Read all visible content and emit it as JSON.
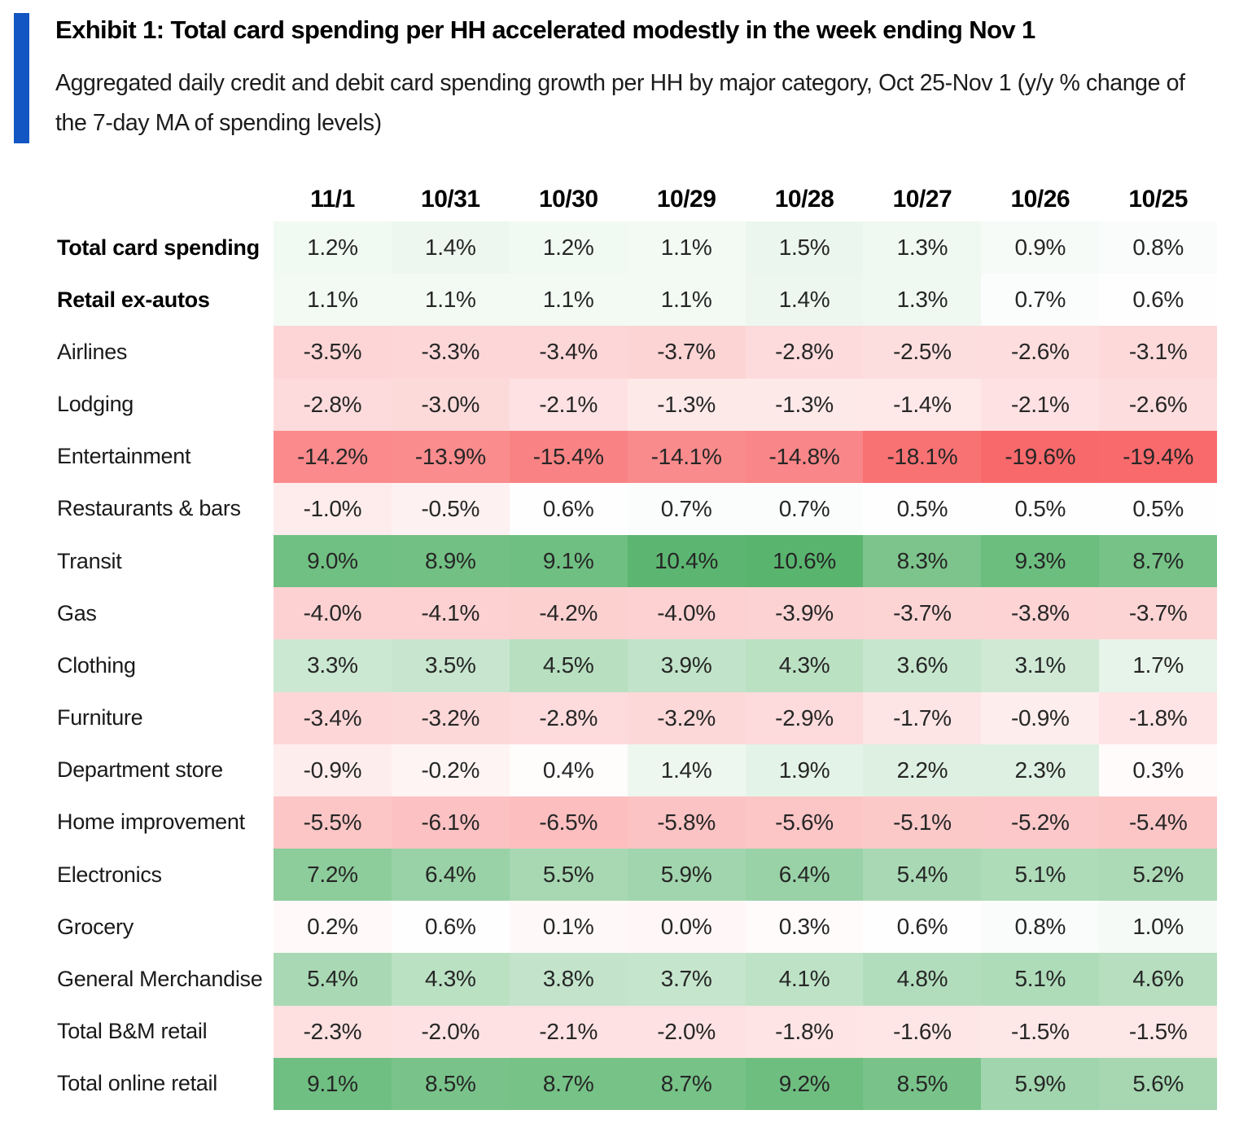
{
  "exhibit": {
    "title": "Exhibit 1: Total card spending per HH accelerated modestly in the week ending Nov 1",
    "subtitle": "Aggregated daily credit and debit card spending growth per HH by major category, Oct 25-Nov 1 (y/y % change of the 7-day MA of spending levels)",
    "accent_color": "#1156C2"
  },
  "chart_data": {
    "type": "heatmap",
    "title": "Exhibit 1: Total card spending per HH accelerated modestly in the week ending Nov 1",
    "unit": "y/y % change of 7-day MA of spending levels",
    "value_suffix": "%",
    "columns": [
      "11/1",
      "10/31",
      "10/30",
      "10/29",
      "10/28",
      "10/27",
      "10/26",
      "10/25"
    ],
    "rows": [
      {
        "label": "Total card spending",
        "bold": true,
        "values": [
          1.2,
          1.4,
          1.2,
          1.1,
          1.5,
          1.3,
          0.9,
          0.8
        ]
      },
      {
        "label": "Retail ex-autos",
        "bold": true,
        "values": [
          1.1,
          1.1,
          1.1,
          1.1,
          1.4,
          1.3,
          0.7,
          0.6
        ]
      },
      {
        "label": "Airlines",
        "bold": false,
        "values": [
          -3.5,
          -3.3,
          -3.4,
          -3.7,
          -2.8,
          -2.5,
          -2.6,
          -3.1
        ]
      },
      {
        "label": "Lodging",
        "bold": false,
        "values": [
          -2.8,
          -3.0,
          -2.1,
          -1.3,
          -1.3,
          -1.4,
          -2.1,
          -2.6
        ]
      },
      {
        "label": "Entertainment",
        "bold": false,
        "values": [
          -14.2,
          -13.9,
          -15.4,
          -14.1,
          -14.8,
          -18.1,
          -19.6,
          -19.4
        ]
      },
      {
        "label": "Restaurants & bars",
        "bold": false,
        "values": [
          -1.0,
          -0.5,
          0.6,
          0.7,
          0.7,
          0.5,
          0.5,
          0.5
        ]
      },
      {
        "label": "Transit",
        "bold": false,
        "values": [
          9.0,
          8.9,
          9.1,
          10.4,
          10.6,
          8.3,
          9.3,
          8.7
        ]
      },
      {
        "label": "Gas",
        "bold": false,
        "values": [
          -4.0,
          -4.1,
          -4.2,
          -4.0,
          -3.9,
          -3.7,
          -3.8,
          -3.7
        ]
      },
      {
        "label": "Clothing",
        "bold": false,
        "values": [
          3.3,
          3.5,
          4.5,
          3.9,
          4.3,
          3.6,
          3.1,
          1.7
        ]
      },
      {
        "label": "Furniture",
        "bold": false,
        "values": [
          -3.4,
          -3.2,
          -2.8,
          -3.2,
          -2.9,
          -1.7,
          -0.9,
          -1.8
        ]
      },
      {
        "label": "Department store",
        "bold": false,
        "values": [
          -0.9,
          -0.2,
          0.4,
          1.4,
          1.9,
          2.2,
          2.3,
          0.3
        ]
      },
      {
        "label": "Home improvement",
        "bold": false,
        "values": [
          -5.5,
          -6.1,
          -6.5,
          -5.8,
          -5.6,
          -5.1,
          -5.2,
          -5.4
        ]
      },
      {
        "label": "Electronics",
        "bold": false,
        "values": [
          7.2,
          6.4,
          5.5,
          5.9,
          6.4,
          5.4,
          5.1,
          5.2
        ]
      },
      {
        "label": "Grocery",
        "bold": false,
        "values": [
          0.2,
          0.6,
          0.1,
          0.0,
          0.3,
          0.6,
          0.8,
          1.0
        ]
      },
      {
        "label": "General Merchandise",
        "bold": false,
        "values": [
          5.4,
          4.3,
          3.8,
          3.7,
          4.1,
          4.8,
          5.1,
          4.6
        ]
      },
      {
        "label": "Total B&M retail",
        "bold": false,
        "values": [
          -2.3,
          -2.0,
          -2.1,
          -2.0,
          -1.8,
          -1.6,
          -1.5,
          -1.5
        ]
      },
      {
        "label": "Total online retail",
        "bold": false,
        "values": [
          9.1,
          8.5,
          8.7,
          8.7,
          9.2,
          8.5,
          5.9,
          5.6
        ]
      }
    ],
    "color_scale": {
      "min": -19.6,
      "mid": 0.55,
      "max": 10.6,
      "negative_color": "#F8696B",
      "mid_color": "#FFFFFF",
      "positive_color": "#59B56E",
      "negative_exponent": 0.8,
      "positive_exponent": 0.9
    },
    "layout": {
      "grid": false,
      "legend": false
    }
  }
}
